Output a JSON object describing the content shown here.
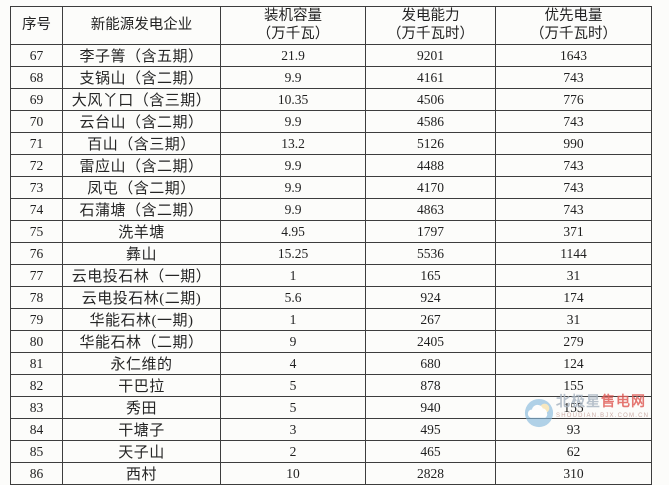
{
  "table": {
    "columns": [
      {
        "line1": "序号",
        "line2": ""
      },
      {
        "line1": "新能源发电企业",
        "line2": ""
      },
      {
        "line1": "装机容量",
        "line2": "（万千瓦）"
      },
      {
        "line1": "发电能力",
        "line2": "（万千瓦时）"
      },
      {
        "line1": "优先电量",
        "line2": "（万千瓦时）"
      }
    ],
    "rows": [
      [
        "67",
        "李子箐（含五期）",
        "21.9",
        "9201",
        "1643"
      ],
      [
        "68",
        "支锅山（含二期）",
        "9.9",
        "4161",
        "743"
      ],
      [
        "69",
        "大风丫口（含三期）",
        "10.35",
        "4506",
        "776"
      ],
      [
        "70",
        "云台山（含二期）",
        "9.9",
        "4586",
        "743"
      ],
      [
        "71",
        "百山（含三期）",
        "13.2",
        "5126",
        "990"
      ],
      [
        "72",
        "雷应山（含二期）",
        "9.9",
        "4488",
        "743"
      ],
      [
        "73",
        "凤屯（含二期）",
        "9.9",
        "4170",
        "743"
      ],
      [
        "74",
        "石蒲塘（含二期）",
        "9.9",
        "4863",
        "743"
      ],
      [
        "75",
        "洗羊塘",
        "4.95",
        "1797",
        "371"
      ],
      [
        "76",
        "彝山",
        "15.25",
        "5536",
        "1144"
      ],
      [
        "77",
        "云电投石林（一期）",
        "1",
        "165",
        "31"
      ],
      [
        "78",
        "云电投石林(二期)",
        "5.6",
        "924",
        "174"
      ],
      [
        "79",
        "华能石林(一期)",
        "1",
        "267",
        "31"
      ],
      [
        "80",
        "华能石林（二期）",
        "9",
        "2405",
        "279"
      ],
      [
        "81",
        "永仁维的",
        "4",
        "680",
        "124"
      ],
      [
        "82",
        "干巴拉",
        "5",
        "878",
        "155"
      ],
      [
        "83",
        "秀田",
        "5",
        "940",
        "155"
      ],
      [
        "84",
        "干塘子",
        "3",
        "495",
        "93"
      ],
      [
        "85",
        "天子山",
        "2",
        "465",
        "62"
      ],
      [
        "86",
        "西村",
        "10",
        "2828",
        "310"
      ]
    ]
  },
  "watermark": {
    "icon": "cloud-icon",
    "brand_part1": "北极星",
    "brand_part2": "售电网",
    "subtext": "SHOUDIAN.BJX.COM.CN",
    "brand_color_gray": "#aab6c2",
    "brand_color_red": "#e05f5a"
  }
}
